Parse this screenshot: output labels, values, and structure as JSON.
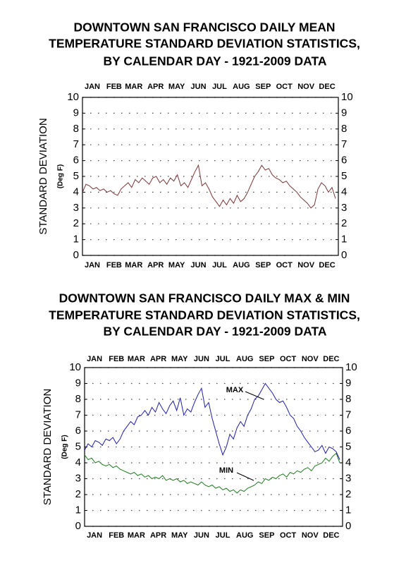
{
  "chart_data": [
    {
      "type": "line",
      "title": [
        "DOWNTOWN SAN FRANCISCO DAILY MEAN",
        "TEMPERATURE STANDARD DEVIATION STATISTICS,",
        "BY CALENDAR DAY - 1921-2009 DATA"
      ],
      "y_label": "STANDARD DEVIATION",
      "y_unit": "(Deg F)",
      "x": [
        1,
        6,
        11,
        16,
        21,
        26,
        31,
        36,
        41,
        46,
        51,
        56,
        61,
        66,
        71,
        76,
        81,
        86,
        91,
        96,
        101,
        106,
        111,
        116,
        121,
        126,
        131,
        136,
        141,
        146,
        151,
        156,
        161,
        166,
        171,
        176,
        181,
        186,
        191,
        196,
        201,
        206,
        211,
        216,
        221,
        226,
        231,
        236,
        241,
        246,
        251,
        256,
        261,
        266,
        271,
        276,
        281,
        286,
        291,
        296,
        301,
        306,
        311,
        316,
        321,
        326,
        331,
        336,
        341,
        346,
        351,
        356,
        361
      ],
      "xlim": [
        1,
        365
      ],
      "xticks": [
        {
          "value": 15,
          "label": "JAN"
        },
        {
          "value": 46,
          "label": "FEB"
        },
        {
          "value": 74,
          "label": "MAR"
        },
        {
          "value": 105,
          "label": "APR"
        },
        {
          "value": 135,
          "label": "MAY"
        },
        {
          "value": 166,
          "label": "JUN"
        },
        {
          "value": 196,
          "label": "JUL"
        },
        {
          "value": 227,
          "label": "AUG"
        },
        {
          "value": 258,
          "label": "SEP"
        },
        {
          "value": 288,
          "label": "OCT"
        },
        {
          "value": 319,
          "label": "NOV"
        },
        {
          "value": 349,
          "label": "DEC"
        }
      ],
      "ylim": [
        0,
        10
      ],
      "yticks": [
        0,
        1,
        2,
        3,
        4,
        5,
        6,
        7,
        8,
        9,
        10
      ],
      "grid": true,
      "series": [
        {
          "color": "#7a3535",
          "values": [
            4.0,
            4.5,
            4.4,
            4.2,
            4.3,
            4.1,
            4.2,
            4.0,
            4.1,
            3.9,
            3.8,
            4.2,
            4.4,
            4.6,
            4.3,
            4.8,
            4.6,
            4.9,
            4.7,
            4.5,
            4.9,
            5.0,
            4.6,
            4.8,
            4.5,
            4.9,
            4.7,
            5.1,
            4.4,
            4.6,
            4.3,
            4.8,
            5.3,
            5.7,
            4.4,
            4.6,
            4.2,
            3.7,
            3.4,
            3.1,
            3.5,
            3.2,
            3.6,
            3.3,
            3.8,
            3.4,
            3.6,
            4.0,
            4.5,
            5.0,
            5.3,
            5.7,
            5.4,
            5.5,
            5.1,
            4.9,
            4.8,
            4.6,
            4.7,
            4.4,
            4.2,
            4.0,
            3.7,
            3.5,
            3.3,
            3.0,
            3.2,
            4.2,
            4.6,
            4.4,
            4.0,
            4.3,
            3.6
          ]
        }
      ]
    },
    {
      "type": "line",
      "title": [
        "DOWNTOWN SAN FRANCISCO DAILY MAX & MIN",
        "TEMPERATURE STANDARD DEVIATION STATISTICS,",
        "BY CALENDAR DAY - 1921-2009 DATA"
      ],
      "y_label": "STANDARD DEVIATION",
      "y_unit": "(Deg F)",
      "x": [
        1,
        6,
        11,
        16,
        21,
        26,
        31,
        36,
        41,
        46,
        51,
        56,
        61,
        66,
        71,
        76,
        81,
        86,
        91,
        96,
        101,
        106,
        111,
        116,
        121,
        126,
        131,
        136,
        141,
        146,
        151,
        156,
        161,
        166,
        171,
        176,
        181,
        186,
        191,
        196,
        201,
        206,
        211,
        216,
        221,
        226,
        231,
        236,
        241,
        246,
        251,
        256,
        261,
        266,
        271,
        276,
        281,
        286,
        291,
        296,
        301,
        306,
        311,
        316,
        321,
        326,
        331,
        336,
        341,
        346,
        351,
        356,
        361
      ],
      "xlim": [
        1,
        365
      ],
      "xticks": [
        {
          "value": 15,
          "label": "JAN"
        },
        {
          "value": 46,
          "label": "FEB"
        },
        {
          "value": 74,
          "label": "MAR"
        },
        {
          "value": 105,
          "label": "APR"
        },
        {
          "value": 135,
          "label": "MAY"
        },
        {
          "value": 166,
          "label": "JUN"
        },
        {
          "value": 196,
          "label": "JUL"
        },
        {
          "value": 227,
          "label": "AUG"
        },
        {
          "value": 258,
          "label": "SEP"
        },
        {
          "value": 288,
          "label": "OCT"
        },
        {
          "value": 319,
          "label": "NOV"
        },
        {
          "value": 349,
          "label": "DEC"
        }
      ],
      "ylim": [
        0,
        10
      ],
      "yticks": [
        0,
        1,
        2,
        3,
        4,
        5,
        6,
        7,
        8,
        9,
        10
      ],
      "grid": true,
      "series": [
        {
          "name": "MAX",
          "color": "#1c1ca8",
          "values": [
            4.8,
            5.2,
            5.0,
            5.4,
            5.3,
            5.1,
            5.5,
            5.4,
            5.6,
            5.2,
            5.5,
            6.0,
            6.3,
            6.6,
            6.4,
            6.9,
            7.0,
            7.3,
            7.0,
            7.5,
            7.2,
            7.8,
            7.4,
            7.1,
            7.6,
            7.9,
            7.3,
            8.1,
            7.0,
            7.4,
            7.2,
            7.8,
            8.3,
            8.7,
            7.5,
            7.8,
            6.8,
            6.0,
            5.2,
            4.5,
            5.0,
            5.8,
            5.5,
            6.2,
            6.6,
            6.3,
            7.0,
            7.4,
            8.0,
            8.2,
            8.6,
            9.0,
            8.7,
            8.4,
            8.0,
            7.8,
            7.9,
            7.5,
            7.0,
            6.8,
            6.3,
            6.0,
            5.6,
            5.3,
            5.0,
            4.7,
            4.8,
            5.1,
            4.6,
            5.0,
            4.9,
            4.7,
            4.2
          ]
        },
        {
          "name": "MIN",
          "color": "#1b7a1b",
          "values": [
            4.5,
            4.2,
            4.3,
            4.0,
            4.1,
            3.9,
            3.8,
            3.9,
            3.7,
            3.8,
            3.6,
            3.5,
            3.4,
            3.3,
            3.4,
            3.2,
            3.3,
            3.1,
            3.2,
            3.0,
            3.1,
            3.0,
            3.2,
            2.9,
            3.0,
            2.9,
            3.0,
            2.8,
            2.9,
            2.7,
            2.8,
            2.7,
            2.6,
            2.8,
            2.6,
            2.5,
            2.6,
            2.4,
            2.5,
            2.3,
            2.4,
            2.2,
            2.3,
            2.1,
            2.3,
            2.2,
            2.4,
            2.5,
            2.6,
            2.8,
            2.7,
            3.0,
            2.9,
            3.1,
            3.0,
            3.2,
            3.3,
            3.1,
            3.4,
            3.3,
            3.5,
            3.4,
            3.6,
            3.7,
            3.5,
            3.8,
            3.9,
            4.0,
            4.3,
            4.1,
            4.4,
            4.6,
            4.0
          ]
        }
      ]
    }
  ]
}
